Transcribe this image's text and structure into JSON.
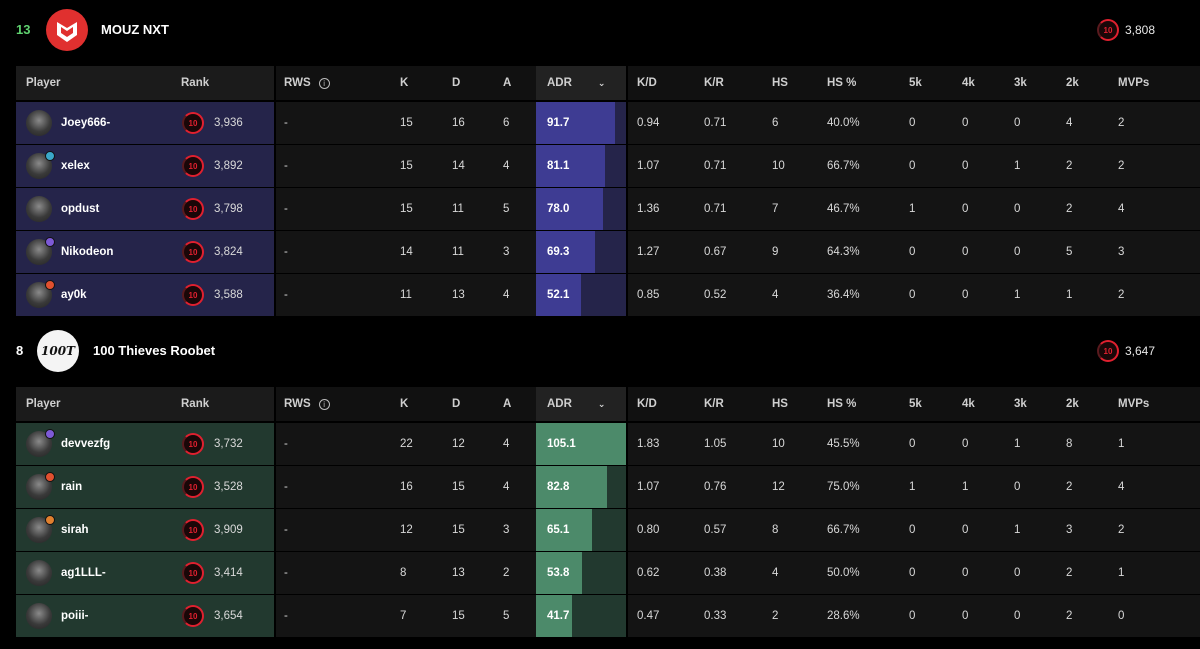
{
  "headers": {
    "player": "Player",
    "rank": "Rank",
    "rws": "RWS",
    "k": "K",
    "d": "D",
    "a": "A",
    "adr": "ADR",
    "kd": "K/D",
    "kr": "K/R",
    "hs": "HS",
    "hs_pct": "HS %",
    "k5": "5k",
    "k4": "4k",
    "k3": "3k",
    "k2": "2k",
    "mvps": "MVPs"
  },
  "teams": [
    {
      "score": "13",
      "score_color": "#5fd16f",
      "name": "MOUZ NXT",
      "logo_text": "",
      "level": "10",
      "elo": "3,808",
      "row_color": "#25244a",
      "adr_color": "#3e3c93",
      "adr_bg": "#25244a",
      "players": [
        {
          "name": "Joey666-",
          "level": "10",
          "rank": "3,936",
          "rws": "-",
          "k": "15",
          "d": "16",
          "a": "6",
          "adr": "91.7",
          "adr_value": 91.7,
          "kd": "0.94",
          "kr": "0.71",
          "hs": "6",
          "hs_pct": "40.0%",
          "k5": "0",
          "k4": "0",
          "k3": "0",
          "k2": "4",
          "mvps": "2",
          "badge": ""
        },
        {
          "name": "xelex",
          "level": "10",
          "rank": "3,892",
          "rws": "-",
          "k": "15",
          "d": "14",
          "a": "4",
          "adr": "81.1",
          "adr_value": 81.1,
          "kd": "1.07",
          "kr": "0.71",
          "hs": "10",
          "hs_pct": "66.7%",
          "k5": "0",
          "k4": "0",
          "k3": "1",
          "k2": "2",
          "mvps": "2",
          "badge": "#3aa7c9"
        },
        {
          "name": "opdust",
          "level": "10",
          "rank": "3,798",
          "rws": "-",
          "k": "15",
          "d": "11",
          "a": "5",
          "adr": "78.0",
          "adr_value": 78.0,
          "kd": "1.36",
          "kr": "0.71",
          "hs": "7",
          "hs_pct": "46.7%",
          "k5": "1",
          "k4": "0",
          "k3": "0",
          "k2": "2",
          "mvps": "4",
          "badge": ""
        },
        {
          "name": "Nikodeon",
          "level": "10",
          "rank": "3,824",
          "rws": "-",
          "k": "14",
          "d": "11",
          "a": "3",
          "adr": "69.3",
          "adr_value": 69.3,
          "kd": "1.27",
          "kr": "0.67",
          "hs": "9",
          "hs_pct": "64.3%",
          "k5": "0",
          "k4": "0",
          "k3": "0",
          "k2": "5",
          "mvps": "3",
          "badge": "#7d5ad6"
        },
        {
          "name": "ay0k",
          "level": "10",
          "rank": "3,588",
          "rws": "-",
          "k": "11",
          "d": "13",
          "a": "4",
          "adr": "52.1",
          "adr_value": 52.1,
          "kd": "0.85",
          "kr": "0.52",
          "hs": "4",
          "hs_pct": "36.4%",
          "k5": "0",
          "k4": "0",
          "k3": "1",
          "k2": "1",
          "mvps": "2",
          "badge": "#e0502f"
        }
      ]
    },
    {
      "score": "8",
      "score_color": "#ffffff",
      "name": "100 Thieves Roobet",
      "logo_text": "100T",
      "level": "10",
      "elo": "3,647",
      "row_color": "#22392f",
      "adr_color": "#4c8a6a",
      "adr_bg": "#22392f",
      "players": [
        {
          "name": "devvezfg",
          "level": "10",
          "rank": "3,732",
          "rws": "-",
          "k": "22",
          "d": "12",
          "a": "4",
          "adr": "105.1",
          "adr_value": 105.1,
          "kd": "1.83",
          "kr": "1.05",
          "hs": "10",
          "hs_pct": "45.5%",
          "k5": "0",
          "k4": "0",
          "k3": "1",
          "k2": "8",
          "mvps": "1",
          "badge": "#7d5ad6"
        },
        {
          "name": "rain",
          "level": "10",
          "rank": "3,528",
          "rws": "-",
          "k": "16",
          "d": "15",
          "a": "4",
          "adr": "82.8",
          "adr_value": 82.8,
          "kd": "1.07",
          "kr": "0.76",
          "hs": "12",
          "hs_pct": "75.0%",
          "k5": "1",
          "k4": "1",
          "k3": "0",
          "k2": "2",
          "mvps": "4",
          "badge": "#e0502f"
        },
        {
          "name": "sirah",
          "level": "10",
          "rank": "3,909",
          "rws": "-",
          "k": "12",
          "d": "15",
          "a": "3",
          "adr": "65.1",
          "adr_value": 65.1,
          "kd": "0.80",
          "kr": "0.57",
          "hs": "8",
          "hs_pct": "66.7%",
          "k5": "0",
          "k4": "0",
          "k3": "1",
          "k2": "3",
          "mvps": "2",
          "badge": "#e0802f"
        },
        {
          "name": "ag1LLL-",
          "level": "10",
          "rank": "3,414",
          "rws": "-",
          "k": "8",
          "d": "13",
          "a": "2",
          "adr": "53.8",
          "adr_value": 53.8,
          "kd": "0.62",
          "kr": "0.38",
          "hs": "4",
          "hs_pct": "50.0%",
          "k5": "0",
          "k4": "0",
          "k3": "0",
          "k2": "2",
          "mvps": "1",
          "badge": ""
        },
        {
          "name": "poiii-",
          "level": "10",
          "rank": "3,654",
          "rws": "-",
          "k": "7",
          "d": "15",
          "a": "5",
          "adr": "41.7",
          "adr_value": 41.7,
          "kd": "0.47",
          "kr": "0.33",
          "hs": "2",
          "hs_pct": "28.6%",
          "k5": "0",
          "k4": "0",
          "k3": "0",
          "k2": "2",
          "mvps": "0",
          "badge": ""
        }
      ]
    }
  ]
}
